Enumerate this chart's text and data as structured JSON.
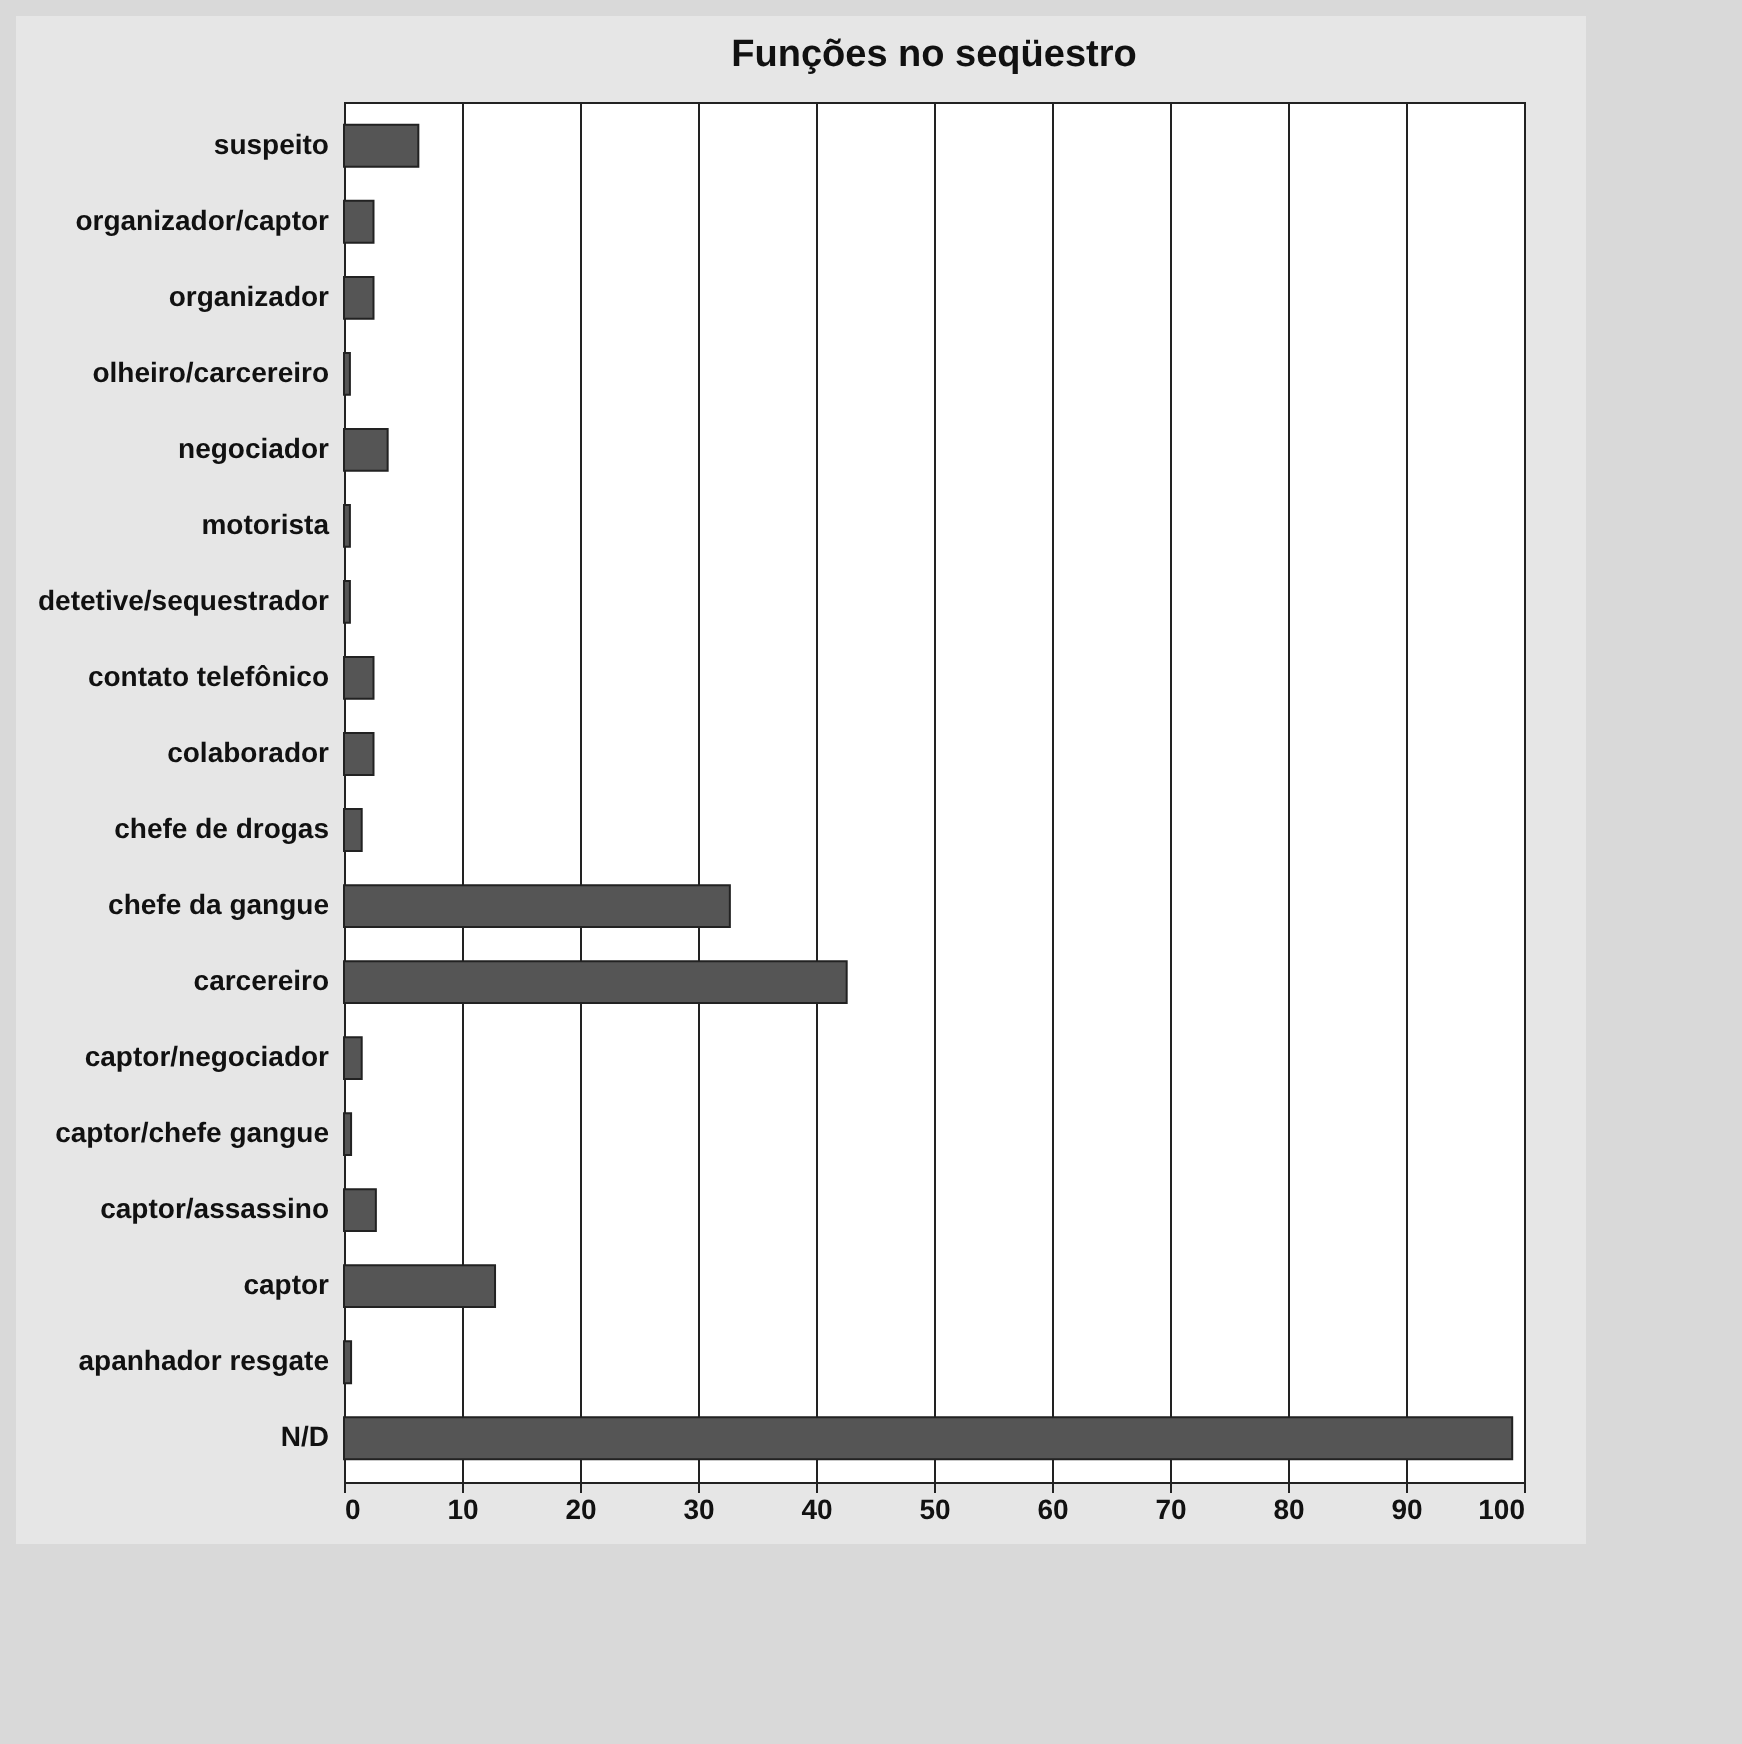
{
  "chart_data": {
    "type": "bar",
    "orientation": "horizontal",
    "title": "Funções no seqüestro",
    "categories": [
      "suspeito",
      "organizador/captor",
      "organizador",
      "olheiro/carcereiro",
      "negociador",
      "motorista",
      "detetive/sequestrador",
      "contato telefônico",
      "colaborador",
      "chefe de drogas",
      "chefe da gangue",
      "carcereiro",
      "captor/negociador",
      "captor/chefe gangue",
      "captor/assassino",
      "captor",
      "apanhador resgate",
      "N/D"
    ],
    "values": [
      6.3,
      2.5,
      2.5,
      0.5,
      3.7,
      0.5,
      0.5,
      2.5,
      2.5,
      1.5,
      32.7,
      42.6,
      1.5,
      0.6,
      2.7,
      12.8,
      0.6,
      99
    ],
    "color": "#555555",
    "xlim": [
      0,
      100
    ],
    "xticks": [
      0,
      10,
      20,
      30,
      40,
      50,
      60,
      70,
      80,
      90,
      100
    ],
    "grid": "x"
  }
}
